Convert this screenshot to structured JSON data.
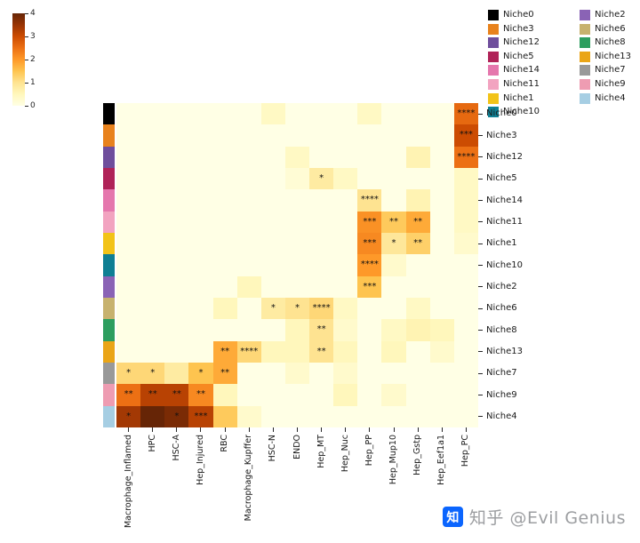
{
  "watermark": {
    "logo_char": "知",
    "brand": "知乎",
    "handle": "@Evil Genius",
    "brand_color": "#0b65fe",
    "text_color": "#9c9ea1"
  },
  "chart_data": {
    "type": "heatmap",
    "title": "",
    "xlabel": "",
    "ylabel": "",
    "colormap": "YlOrBr",
    "colormap_stops": [
      "#ffffe5",
      "#fff7bc",
      "#fee391",
      "#fec44f",
      "#fe9929",
      "#ec7014",
      "#cc4c02",
      "#993404",
      "#662506"
    ],
    "vmin": 0,
    "vmax": 4,
    "colorbar_ticks": [
      "4",
      "3",
      "2",
      "1",
      "0"
    ],
    "legend_position": "top-right",
    "legend_columns": [
      [
        "Niche0",
        "Niche3",
        "Niche12",
        "Niche5",
        "Niche14",
        "Niche11",
        "Niche1",
        "Niche10"
      ],
      [
        "Niche2",
        "Niche6",
        "Niche8",
        "Niche13",
        "Niche7",
        "Niche9",
        "Niche4"
      ]
    ],
    "niche_colors": {
      "Niche0": "#000000",
      "Niche1": "#f2c318",
      "Niche2": "#8a63b5",
      "Niche3": "#e8821c",
      "Niche4": "#a6cee3",
      "Niche5": "#b02358",
      "Niche6": "#c7b26e",
      "Niche7": "#999999",
      "Niche8": "#2d9e5f",
      "Niche9": "#ee9cb2",
      "Niche10": "#0f7f93",
      "Niche11": "#f2a3c0",
      "Niche12": "#6f4e9c",
      "Niche13": "#eaa517",
      "Niche14": "#e577ad"
    },
    "columns": [
      "Macrophage_Inflamed",
      "HPC",
      "HSC-A",
      "Hep_Injured",
      "RBC",
      "Macrophage_Kupffer",
      "HSC-N",
      "ENDO",
      "Hep_MT",
      "Hep_Nuc",
      "Hep_PP",
      "Hep_Mup10",
      "Hep_Gstp",
      "Hep_Eef1a1",
      "Hep_PC"
    ],
    "rows": [
      "Niche0",
      "Niche3",
      "Niche12",
      "Niche5",
      "Niche14",
      "Niche11",
      "Niche1",
      "Niche10",
      "Niche2",
      "Niche6",
      "Niche8",
      "Niche13",
      "Niche7",
      "Niche9",
      "Niche4"
    ],
    "values": [
      [
        0,
        0,
        0,
        0,
        0,
        0,
        0.4,
        0,
        0,
        0,
        0.4,
        0,
        0,
        0,
        2.6
      ],
      [
        0,
        0,
        0,
        0,
        0,
        0,
        0,
        0,
        0,
        0,
        0,
        0,
        0,
        0,
        3.0
      ],
      [
        0,
        0,
        0,
        0,
        0,
        0,
        0,
        0.4,
        0,
        0,
        0,
        0,
        0.6,
        0,
        2.5
      ],
      [
        0,
        0,
        0,
        0,
        0,
        0,
        0,
        0.2,
        0.8,
        0.4,
        0,
        0,
        0,
        0,
        0.4
      ],
      [
        0,
        0,
        0,
        0,
        0,
        0,
        0,
        0,
        0,
        0,
        1.0,
        0,
        0.6,
        0,
        0.4
      ],
      [
        0,
        0,
        0,
        0,
        0,
        0,
        0,
        0,
        0,
        0,
        2.1,
        1.4,
        1.8,
        0,
        0.4
      ],
      [
        0,
        0,
        0,
        0,
        0,
        0,
        0,
        0,
        0,
        0,
        2.2,
        0.9,
        1.3,
        0,
        0.3
      ],
      [
        0,
        0,
        0,
        0,
        0,
        0,
        0,
        0,
        0,
        0,
        2.0,
        0.3,
        0,
        0,
        0
      ],
      [
        0,
        0,
        0,
        0,
        0,
        0.5,
        0,
        0,
        0,
        0,
        1.5,
        0,
        0,
        0,
        0
      ],
      [
        0,
        0,
        0,
        0,
        0.5,
        0,
        0.8,
        1.0,
        1.2,
        0.4,
        0,
        0,
        0.4,
        0,
        0
      ],
      [
        0,
        0,
        0,
        0,
        0,
        0,
        0,
        0.5,
        1.0,
        0.3,
        0,
        0.4,
        0.6,
        0.5,
        0
      ],
      [
        0,
        0,
        0,
        0,
        1.8,
        1.2,
        0.5,
        0.5,
        1.0,
        0.5,
        0,
        0.5,
        0,
        0.3,
        0
      ],
      [
        1.2,
        1.2,
        0.8,
        1.5,
        1.8,
        0,
        0,
        0.3,
        0,
        0.3,
        0,
        0,
        0,
        0,
        0
      ],
      [
        2.5,
        3.2,
        3.2,
        2.2,
        0.5,
        0,
        0,
        0,
        0,
        0.5,
        0,
        0.3,
        0,
        0,
        0
      ],
      [
        3.4,
        4.0,
        3.8,
        3.2,
        1.4,
        0.3,
        0,
        0,
        0,
        0,
        0,
        0,
        0,
        0,
        0
      ]
    ],
    "stars": [
      [
        "",
        "",
        "",
        "",
        "",
        "",
        "",
        "",
        "",
        "",
        "",
        "",
        "",
        "",
        "****"
      ],
      [
        "",
        "",
        "",
        "",
        "",
        "",
        "",
        "",
        "",
        "",
        "",
        "",
        "",
        "",
        "***"
      ],
      [
        "",
        "",
        "",
        "",
        "",
        "",
        "",
        "",
        "",
        "",
        "",
        "",
        "",
        "",
        "****"
      ],
      [
        "",
        "",
        "",
        "",
        "",
        "",
        "",
        "",
        "*",
        "",
        "",
        "",
        "",
        "",
        ""
      ],
      [
        "",
        "",
        "",
        "",
        "",
        "",
        "",
        "",
        "",
        "",
        "****",
        "",
        "",
        "",
        ""
      ],
      [
        "",
        "",
        "",
        "",
        "",
        "",
        "",
        "",
        "",
        "",
        "***",
        "**",
        "**",
        "",
        ""
      ],
      [
        "",
        "",
        "",
        "",
        "",
        "",
        "",
        "",
        "",
        "",
        "***",
        "*",
        "**",
        "",
        ""
      ],
      [
        "",
        "",
        "",
        "",
        "",
        "",
        "",
        "",
        "",
        "",
        "****",
        "",
        "",
        "",
        ""
      ],
      [
        "",
        "",
        "",
        "",
        "",
        "",
        "",
        "",
        "",
        "",
        "***",
        "",
        "",
        "",
        ""
      ],
      [
        "",
        "",
        "",
        "",
        "",
        "",
        "*",
        "*",
        "****",
        "",
        "",
        "",
        "",
        "",
        ""
      ],
      [
        "",
        "",
        "",
        "",
        "",
        "",
        "",
        "",
        "**",
        "",
        "",
        "",
        "",
        "",
        ""
      ],
      [
        "",
        "",
        "",
        "",
        "**",
        "****",
        "",
        "",
        "**",
        "",
        "",
        "",
        "",
        "",
        ""
      ],
      [
        "*",
        "*",
        "",
        "*",
        "**",
        "",
        "",
        "",
        "",
        "",
        "",
        "",
        "",
        "",
        ""
      ],
      [
        "**",
        "**",
        "**",
        "**",
        "",
        "",
        "",
        "",
        "",
        "",
        "",
        "",
        "",
        "",
        ""
      ],
      [
        "*",
        "",
        "*",
        "***",
        "",
        "",
        "",
        "",
        "",
        "",
        "",
        "",
        "",
        "",
        ""
      ]
    ]
  }
}
